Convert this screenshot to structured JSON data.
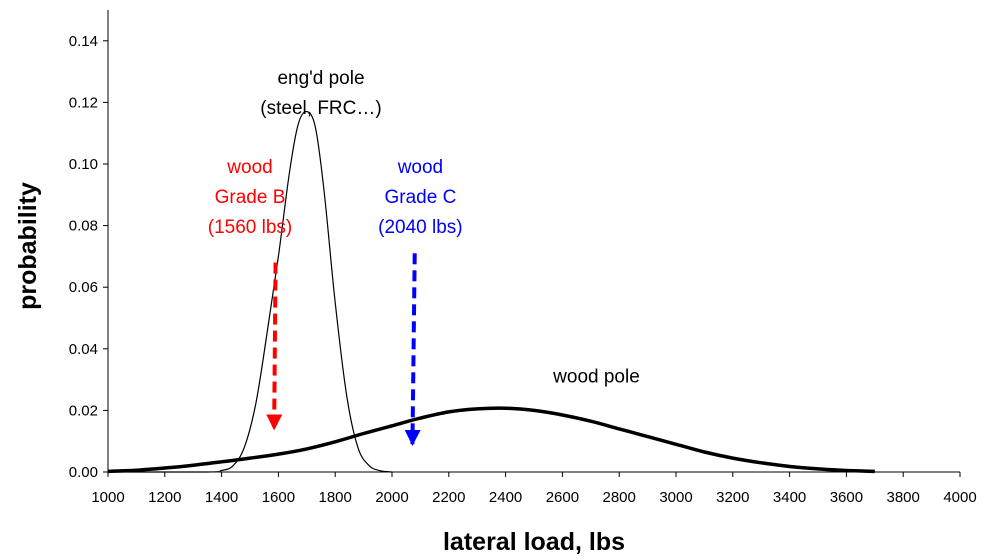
{
  "chart_data": {
    "type": "line",
    "title": "",
    "xlabel": "lateral load, lbs",
    "ylabel": "probability",
    "xlim": [
      1000,
      4000
    ],
    "ylim": [
      0,
      0.15
    ],
    "x_ticks": [
      "1000",
      "1200",
      "1400",
      "1600",
      "1800",
      "2000",
      "2200",
      "2400",
      "2600",
      "2800",
      "3000",
      "3200",
      "3400",
      "3600",
      "3800",
      "4000"
    ],
    "y_ticks": [
      "0.00",
      "0.02",
      "0.04",
      "0.06",
      "0.08",
      "0.10",
      "0.12",
      "0.14"
    ],
    "grid": false,
    "legend": "none",
    "series": [
      {
        "color": "#000000",
        "line_width": "thin",
        "x": [
          1000,
          1350,
          1400,
          1440,
          1480,
          1520,
          1560,
          1600,
          1640,
          1670,
          1700,
          1730,
          1760,
          1800,
          1840,
          1880,
          1920,
          1960,
          2000
        ],
        "y": [
          0,
          0,
          0.0005,
          0.002,
          0.008,
          0.022,
          0.045,
          0.07,
          0.098,
          0.113,
          0.117,
          0.112,
          0.092,
          0.055,
          0.025,
          0.008,
          0.002,
          0.0004,
          0
        ]
      },
      {
        "color": "#000000",
        "line_width": "thick",
        "x": [
          1000,
          1100,
          1200,
          1300,
          1400,
          1500,
          1600,
          1700,
          1800,
          1900,
          2000,
          2100,
          2200,
          2300,
          2400,
          2500,
          2600,
          2700,
          2800,
          2900,
          3000,
          3100,
          3200,
          3300,
          3400,
          3500,
          3600,
          3700
        ],
        "y": [
          0.0002,
          0.0006,
          0.0013,
          0.0022,
          0.0033,
          0.0045,
          0.0058,
          0.0075,
          0.0098,
          0.0125,
          0.015,
          0.0175,
          0.0195,
          0.0205,
          0.0207,
          0.02,
          0.0185,
          0.0165,
          0.014,
          0.0115,
          0.009,
          0.0065,
          0.0045,
          0.003,
          0.0018,
          0.001,
          0.0005,
          0.0002
        ]
      }
    ],
    "annotations": [
      {
        "lines": [
          "eng'd pole",
          "(steel, FRC…)"
        ],
        "color": "#000000",
        "x": 1750,
        "y": 0.126
      },
      {
        "lines": [
          "wood pole"
        ],
        "color": "#000000",
        "x": 2720,
        "y": 0.029
      },
      {
        "lines": [
          "wood",
          "Grade B",
          "(1560 lbs)"
        ],
        "color": "#ff0000",
        "x": 1500,
        "y": 0.097
      },
      {
        "lines": [
          "wood",
          "Grade C",
          "(2040 lbs)"
        ],
        "color": "#0000ff",
        "x": 2100,
        "y": 0.097
      }
    ],
    "arrows": [
      {
        "color": "#ff0000",
        "x_start": 1590,
        "y_start": 0.068,
        "x_end": 1585,
        "y_end": 0.014
      },
      {
        "color": "#0000ff",
        "x_start": 2080,
        "y_start": 0.071,
        "x_end": 2072,
        "y_end": 0.009
      }
    ]
  }
}
